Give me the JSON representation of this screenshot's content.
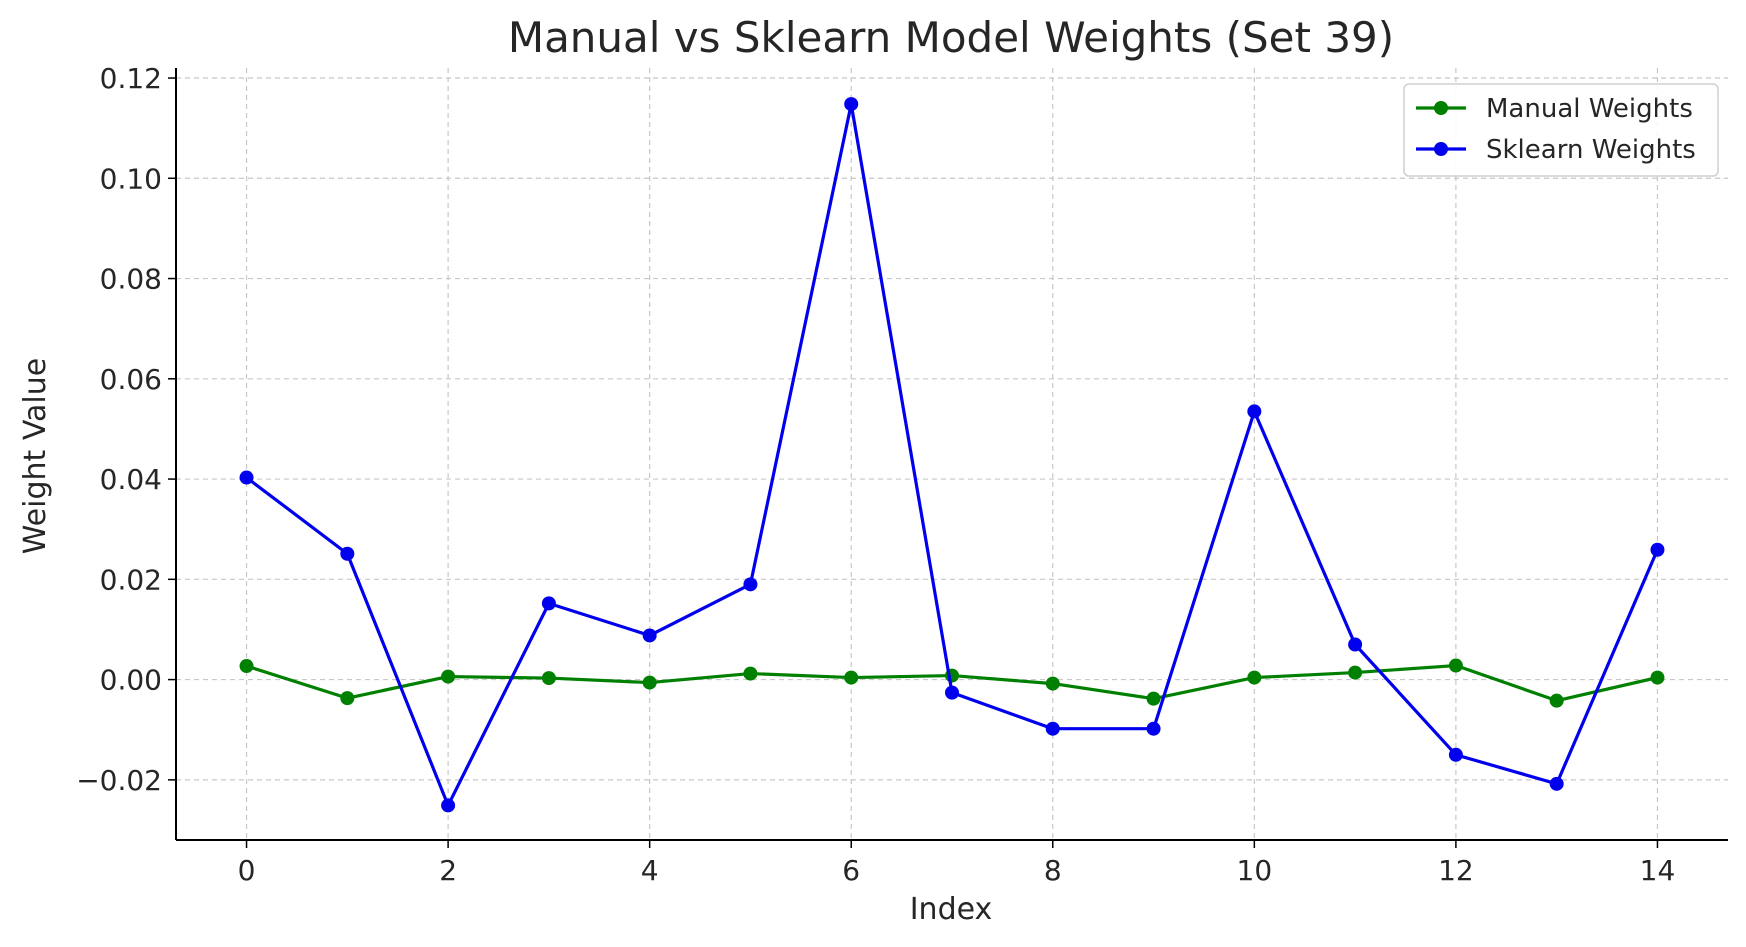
{
  "chart_data": {
    "type": "line",
    "title": "Manual vs Sklearn Model Weights (Set 39)",
    "xlabel": "Index",
    "ylabel": "Weight Value",
    "x": [
      0,
      1,
      2,
      3,
      4,
      5,
      6,
      7,
      8,
      9,
      10,
      11,
      12,
      13,
      14
    ],
    "xticks": [
      0,
      2,
      4,
      6,
      8,
      10,
      12,
      14
    ],
    "xtick_labels": [
      "0",
      "2",
      "4",
      "6",
      "8",
      "10",
      "12",
      "14"
    ],
    "yticks": [
      -0.02,
      0.0,
      0.02,
      0.04,
      0.06,
      0.08,
      0.1,
      0.12
    ],
    "ytick_labels": [
      "−0.02",
      "0.00",
      "0.02",
      "0.04",
      "0.06",
      "0.08",
      "0.10",
      "0.12"
    ],
    "xlim": [
      -0.7,
      14.7
    ],
    "ylim": [
      -0.032,
      0.122
    ],
    "grid": true,
    "legend_position": "top-right",
    "series": [
      {
        "name": "Manual Weights",
        "color": "#008000",
        "values": [
          0.0027,
          -0.0037,
          0.0006,
          0.0003,
          -0.0006,
          0.0012,
          0.0004,
          0.0008,
          -0.0008,
          -0.0038,
          0.0004,
          0.0014,
          0.0028,
          -0.0042,
          0.0004
        ]
      },
      {
        "name": "Sklearn Weights",
        "color": "#0000ee",
        "values": [
          0.0403,
          0.0251,
          -0.0251,
          0.0152,
          0.0088,
          0.019,
          0.1148,
          -0.0026,
          -0.0098,
          -0.0098,
          0.0535,
          0.007,
          -0.015,
          -0.0208,
          0.0259
        ]
      }
    ]
  }
}
